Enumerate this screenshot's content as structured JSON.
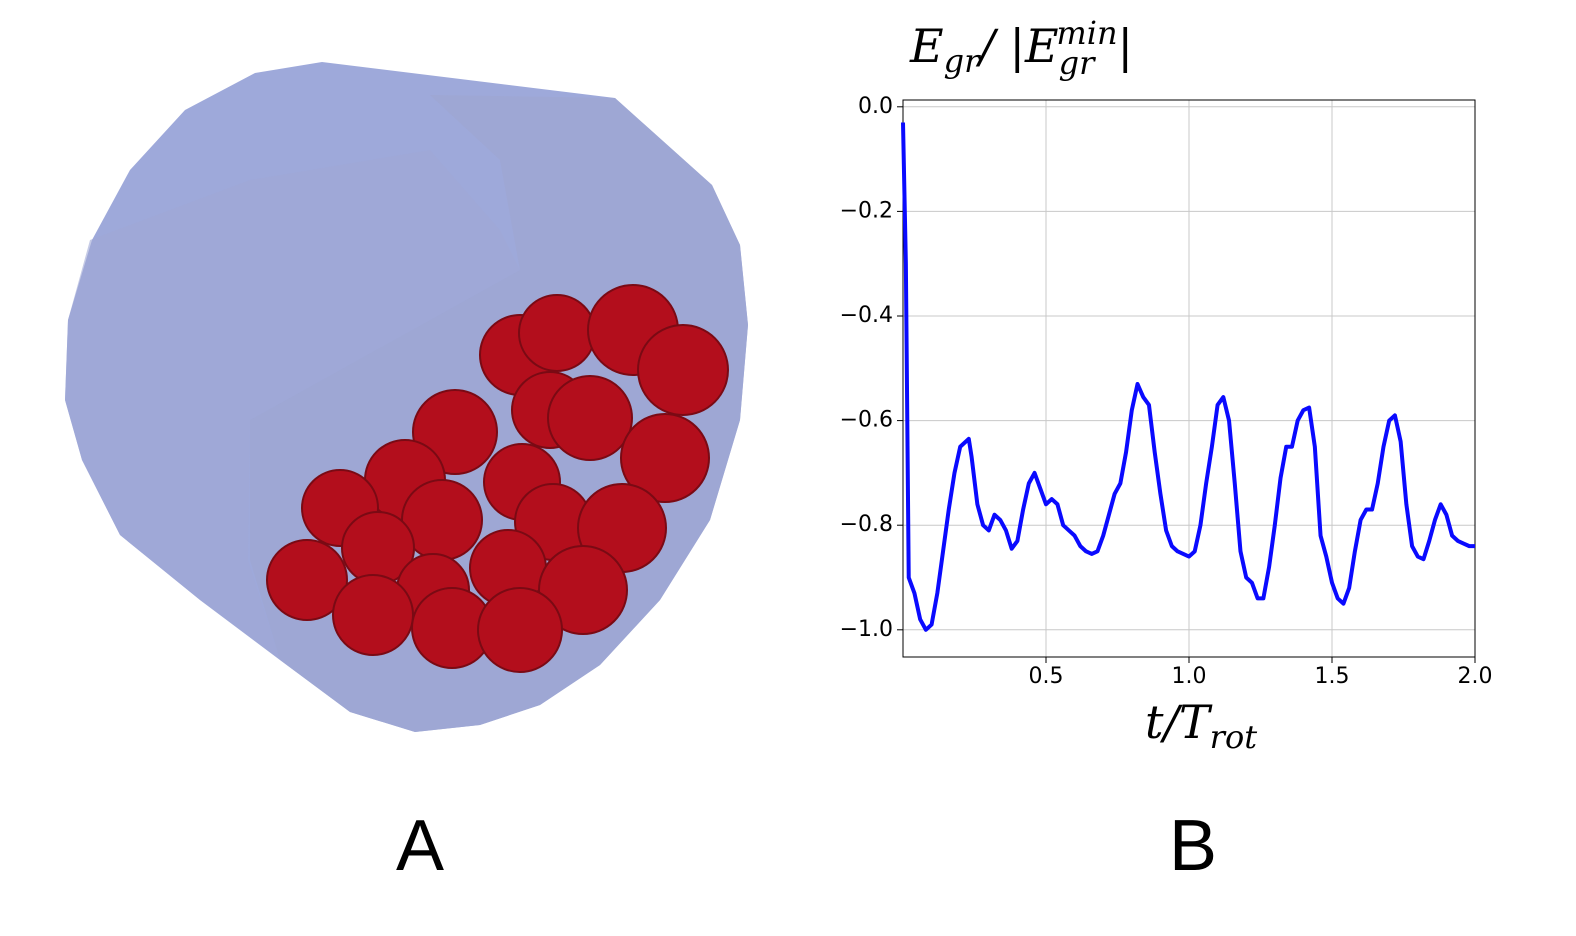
{
  "panel_labels": [
    "A",
    "B"
  ],
  "chart_data": {
    "type": "line",
    "title_parts": [
      "E",
      "gr",
      "/ |E",
      "gr",
      "min",
      "|"
    ],
    "xlabel_parts": [
      "t/T",
      "rot"
    ],
    "x": [
      0,
      0.01,
      0.02,
      0.04,
      0.06,
      0.08,
      0.1,
      0.12,
      0.14,
      0.16,
      0.18,
      0.2,
      0.23,
      0.24,
      0.26,
      0.28,
      0.3,
      0.32,
      0.34,
      0.36,
      0.38,
      0.4,
      0.42,
      0.44,
      0.46,
      0.48,
      0.5,
      0.52,
      0.54,
      0.56,
      0.58,
      0.6,
      0.62,
      0.64,
      0.66,
      0.68,
      0.7,
      0.72,
      0.74,
      0.76,
      0.78,
      0.8,
      0.82,
      0.84,
      0.86,
      0.88,
      0.9,
      0.92,
      0.94,
      0.96,
      0.98,
      1.0,
      1.02,
      1.04,
      1.06,
      1.08,
      1.1,
      1.12,
      1.14,
      1.16,
      1.18,
      1.2,
      1.22,
      1.24,
      1.26,
      1.28,
      1.3,
      1.32,
      1.34,
      1.36,
      1.38,
      1.4,
      1.42,
      1.44,
      1.46,
      1.48,
      1.5,
      1.52,
      1.54,
      1.56,
      1.58,
      1.6,
      1.62,
      1.64,
      1.66,
      1.68,
      1.7,
      1.72,
      1.74,
      1.76,
      1.78,
      1.8,
      1.82,
      1.84,
      1.86,
      1.88,
      1.9,
      1.92,
      1.94,
      1.96,
      1.98,
      2.0
    ],
    "values": [
      -0.03,
      -0.3,
      -0.9,
      -0.93,
      -0.98,
      -1.0,
      -0.99,
      -0.93,
      -0.85,
      -0.77,
      -0.7,
      -0.65,
      -0.635,
      -0.67,
      -0.76,
      -0.8,
      -0.81,
      -0.78,
      -0.79,
      -0.81,
      -0.845,
      -0.83,
      -0.77,
      -0.72,
      -0.7,
      -0.73,
      -0.76,
      -0.75,
      -0.76,
      -0.8,
      -0.81,
      -0.82,
      -0.84,
      -0.85,
      -0.855,
      -0.85,
      -0.82,
      -0.78,
      -0.74,
      -0.72,
      -0.66,
      -0.58,
      -0.53,
      -0.555,
      -0.57,
      -0.66,
      -0.74,
      -0.81,
      -0.84,
      -0.85,
      -0.855,
      -0.86,
      -0.85,
      -0.8,
      -0.72,
      -0.65,
      -0.57,
      -0.555,
      -0.6,
      -0.72,
      -0.85,
      -0.9,
      -0.91,
      -0.94,
      -0.94,
      -0.88,
      -0.8,
      -0.71,
      -0.65,
      -0.65,
      -0.6,
      -0.58,
      -0.575,
      -0.65,
      -0.82,
      -0.86,
      -0.91,
      -0.94,
      -0.95,
      -0.92,
      -0.85,
      -0.79,
      -0.77,
      -0.77,
      -0.72,
      -0.65,
      -0.6,
      -0.59,
      -0.64,
      -0.76,
      -0.84,
      -0.86,
      -0.865,
      -0.83,
      -0.79,
      -0.76,
      -0.78,
      -0.82,
      -0.83,
      -0.835,
      -0.84,
      -0.84
    ],
    "color": "#0a0aff",
    "xlim": [
      0,
      2.0
    ],
    "ylim": [
      -1.052,
      0.013
    ],
    "xticks": [
      0.5,
      {
        "value": 1.0,
        "label": "1.0"
      },
      1.5,
      {
        "value": 2.0,
        "label": "2.0"
      }
    ],
    "yticks": [
      {
        "value": 0,
        "label": "0.0"
      },
      {
        "value": -0.2,
        "label": "−0.2"
      },
      {
        "value": -0.4,
        "label": "−0.4"
      },
      {
        "value": -0.6,
        "label": "−0.6"
      },
      {
        "value": -0.8,
        "label": "−0.8"
      },
      {
        "value": -1.0,
        "label": "−1.0"
      }
    ],
    "grid": true
  }
}
